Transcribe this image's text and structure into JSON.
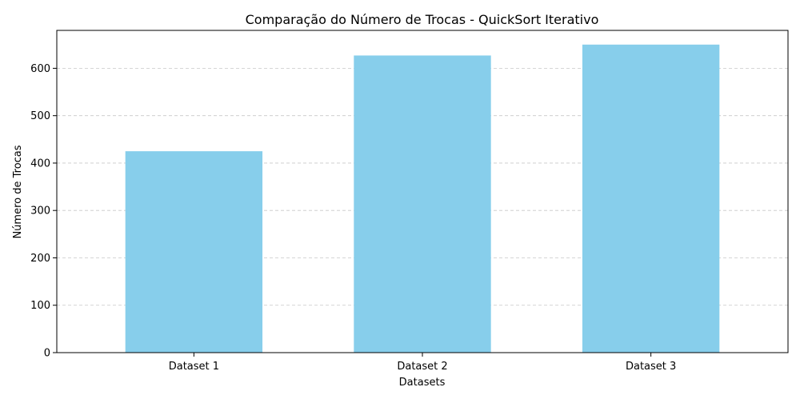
{
  "chart_data": {
    "type": "bar",
    "title": "Comparação do Número de Trocas - QuickSort Iterativo",
    "xlabel": "Datasets",
    "ylabel": "Número de Trocas",
    "categories": [
      "Dataset 1",
      "Dataset 2",
      "Dataset 3"
    ],
    "values": [
      425,
      627,
      650
    ],
    "ylim": [
      0,
      680
    ],
    "yticks": [
      0,
      100,
      200,
      300,
      400,
      500,
      600
    ],
    "grid": "horizontal dashed",
    "legend": "none",
    "colors": {
      "bar": "#87ceeb",
      "grid": "#c8c8c8",
      "axis": "#000000"
    }
  }
}
